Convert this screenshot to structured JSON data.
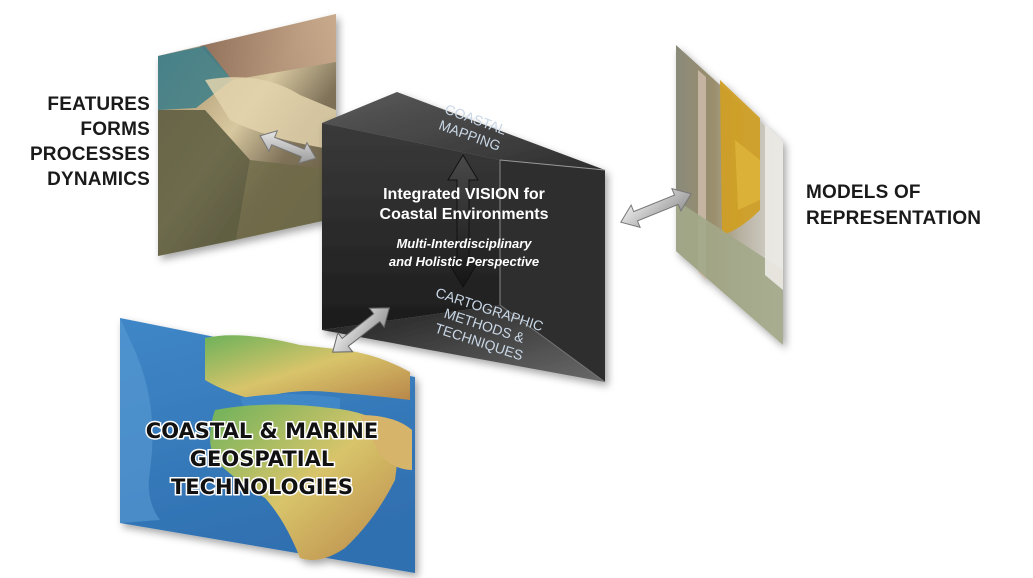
{
  "left_label": [
    "FEATURES",
    "FORMS",
    "PROCESSES",
    "DYNAMICS"
  ],
  "right_label": [
    "MODELS OF",
    "REPRESENTATION"
  ],
  "prism": {
    "top_face": [
      "COASTAL",
      "MAPPING"
    ],
    "front_title": [
      "Integrated VISION for",
      "Coastal Environments"
    ],
    "front_subtitle": [
      "Multi-Interdisciplinary",
      "and Holistic Perspective"
    ],
    "bottom_face": [
      "CARTOGRAPHIC",
      "METHODS &",
      "TECHNIQUES"
    ]
  },
  "map_panel": {
    "text": [
      "COASTAL & MARINE",
      "GEOSPATIAL",
      "TECHNOLOGIES"
    ]
  },
  "colors": {
    "prism_dark": "#2b2b2b",
    "prism_face_text": "#c9d7e6",
    "label_text": "#1a1a1a"
  }
}
